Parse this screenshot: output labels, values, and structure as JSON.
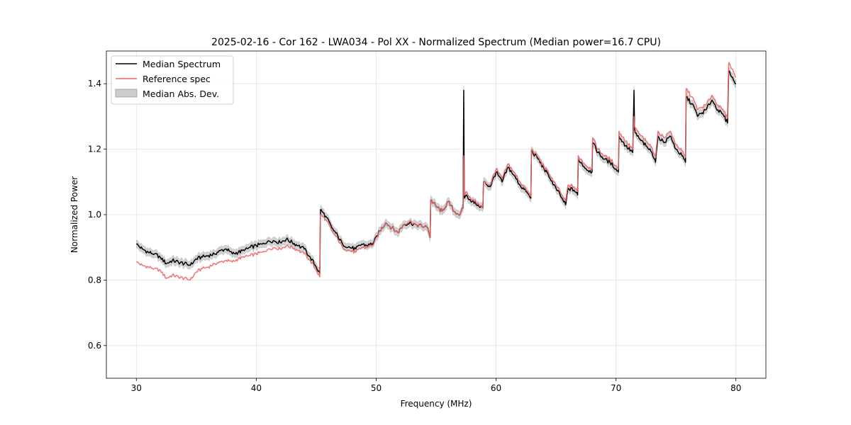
{
  "chart_data": {
    "type": "line",
    "title": "2025-02-16 - Cor 162 - LWA034 - Pol XX - Normalized Spectrum (Median power=16.7 CPU)",
    "xlabel": "Frequency (MHz)",
    "ylabel": "Normalized Power",
    "xlim": [
      27.5,
      82.5
    ],
    "ylim": [
      0.5,
      1.5
    ],
    "xticks": [
      30,
      40,
      50,
      60,
      70,
      80
    ],
    "yticks": [
      0.6,
      0.8,
      1.0,
      1.2,
      1.4
    ],
    "xtick_labels": [
      "30",
      "40",
      "50",
      "60",
      "70",
      "80"
    ],
    "ytick_labels": [
      "0.6",
      "0.8",
      "1.0",
      "1.2",
      "1.4"
    ],
    "grid": true,
    "legend_position": "top-left",
    "mad_width": 0.012,
    "series": [
      {
        "name": "Median Spectrum",
        "color": "#000000",
        "x": [
          30.0,
          30.5,
          31.0,
          31.5,
          32.0,
          32.5,
          33.0,
          33.5,
          34.0,
          34.5,
          35.0,
          35.5,
          36.0,
          36.5,
          37.0,
          37.5,
          38.0,
          38.5,
          39.0,
          39.5,
          40.0,
          40.5,
          41.0,
          41.5,
          42.0,
          42.5,
          43.0,
          43.5,
          44.0,
          44.5,
          45.0,
          45.3,
          45.35,
          45.8,
          46.3,
          46.8,
          47.2,
          47.8,
          48.3,
          48.8,
          49.3,
          49.8,
          50.3,
          50.8,
          51.3,
          51.8,
          52.3,
          52.8,
          53.3,
          53.8,
          54.3,
          54.5,
          54.55,
          55.0,
          55.5,
          56.0,
          56.5,
          57.0,
          57.25,
          57.3,
          57.35,
          57.5,
          58.0,
          58.5,
          58.9,
          58.95,
          59.5,
          60.0,
          60.5,
          61.0,
          61.5,
          62.0,
          62.5,
          62.9,
          62.95,
          63.5,
          64.0,
          64.5,
          65.0,
          65.5,
          65.8,
          66.0,
          66.5,
          66.8,
          66.85,
          67.5,
          68.0,
          68.05,
          68.5,
          69.0,
          69.5,
          70.0,
          70.2,
          70.25,
          70.8,
          71.4,
          71.5,
          71.55,
          71.6,
          72.0,
          72.5,
          73.0,
          73.3,
          73.5,
          74.0,
          74.5,
          75.0,
          75.5,
          75.8,
          75.85,
          76.5,
          76.8,
          77.5,
          78.0,
          78.5,
          79.0,
          79.3,
          79.4,
          79.8,
          80.0
        ],
        "y": [
          0.91,
          0.895,
          0.885,
          0.88,
          0.87,
          0.85,
          0.86,
          0.855,
          0.85,
          0.845,
          0.865,
          0.87,
          0.875,
          0.88,
          0.89,
          0.895,
          0.88,
          0.885,
          0.89,
          0.9,
          0.905,
          0.91,
          0.92,
          0.92,
          0.915,
          0.925,
          0.915,
          0.905,
          0.895,
          0.87,
          0.84,
          0.82,
          1.015,
          0.995,
          0.96,
          0.935,
          0.91,
          0.9,
          0.895,
          0.91,
          0.905,
          0.915,
          0.95,
          0.975,
          0.96,
          0.945,
          0.97,
          0.975,
          0.97,
          0.965,
          0.96,
          0.93,
          1.045,
          1.025,
          1.01,
          1.04,
          1.01,
          1.0,
          1.02,
          1.38,
          1.05,
          1.06,
          1.04,
          1.03,
          1.02,
          1.1,
          1.085,
          1.13,
          1.1,
          1.145,
          1.12,
          1.09,
          1.07,
          1.05,
          1.195,
          1.17,
          1.14,
          1.11,
          1.08,
          1.05,
          1.03,
          1.08,
          1.075,
          1.06,
          1.17,
          1.14,
          1.13,
          1.22,
          1.19,
          1.17,
          1.16,
          1.14,
          1.13,
          1.24,
          1.21,
          1.19,
          1.38,
          1.26,
          1.25,
          1.23,
          1.21,
          1.19,
          1.16,
          1.24,
          1.22,
          1.24,
          1.2,
          1.18,
          1.16,
          1.36,
          1.33,
          1.3,
          1.32,
          1.35,
          1.32,
          1.3,
          1.28,
          1.44,
          1.41,
          1.4
        ]
      },
      {
        "name": "Reference spec",
        "color": "#f06464",
        "x": [
          30.0,
          30.5,
          31.0,
          31.5,
          32.0,
          32.5,
          33.0,
          33.5,
          34.0,
          34.5,
          35.0,
          35.5,
          36.0,
          36.5,
          37.0,
          37.5,
          38.0,
          38.5,
          39.0,
          39.5,
          40.0,
          40.5,
          41.0,
          41.5,
          42.0,
          42.5,
          43.0,
          43.5,
          44.0,
          44.5,
          45.0,
          45.3,
          45.35,
          45.8,
          46.3,
          46.8,
          47.2,
          47.8,
          48.3,
          48.8,
          49.3,
          49.8,
          50.3,
          50.8,
          51.3,
          51.8,
          52.3,
          52.8,
          53.3,
          53.8,
          54.3,
          54.5,
          54.55,
          55.0,
          55.5,
          56.0,
          56.5,
          57.0,
          57.25,
          57.3,
          57.35,
          57.5,
          58.0,
          58.5,
          58.9,
          58.95,
          59.5,
          60.0,
          60.5,
          61.0,
          61.5,
          62.0,
          62.5,
          62.9,
          62.95,
          63.5,
          64.0,
          64.5,
          65.0,
          65.5,
          65.8,
          66.0,
          66.5,
          66.8,
          66.85,
          67.5,
          68.0,
          68.05,
          68.5,
          69.0,
          69.5,
          70.0,
          70.2,
          70.25,
          70.8,
          71.4,
          71.5,
          71.55,
          71.6,
          72.0,
          72.5,
          73.0,
          73.3,
          73.5,
          74.0,
          74.5,
          75.0,
          75.5,
          75.8,
          75.85,
          76.5,
          76.8,
          77.5,
          78.0,
          78.5,
          79.0,
          79.3,
          79.4,
          79.8,
          80.0
        ],
        "y": [
          0.855,
          0.845,
          0.84,
          0.835,
          0.83,
          0.805,
          0.815,
          0.81,
          0.805,
          0.8,
          0.825,
          0.835,
          0.84,
          0.85,
          0.855,
          0.86,
          0.855,
          0.865,
          0.87,
          0.875,
          0.88,
          0.885,
          0.895,
          0.9,
          0.895,
          0.905,
          0.9,
          0.89,
          0.88,
          0.86,
          0.83,
          0.81,
          1.0,
          0.985,
          0.95,
          0.925,
          0.9,
          0.89,
          0.885,
          0.9,
          0.9,
          0.91,
          0.95,
          0.975,
          0.96,
          0.945,
          0.97,
          0.98,
          0.97,
          0.965,
          0.96,
          0.93,
          1.045,
          1.025,
          1.01,
          1.04,
          1.01,
          1.0,
          1.02,
          1.18,
          1.06,
          1.07,
          1.045,
          1.035,
          1.02,
          1.1,
          1.09,
          1.14,
          1.11,
          1.155,
          1.13,
          1.1,
          1.075,
          1.055,
          1.2,
          1.175,
          1.145,
          1.12,
          1.09,
          1.06,
          1.04,
          1.09,
          1.085,
          1.07,
          1.18,
          1.15,
          1.14,
          1.235,
          1.2,
          1.18,
          1.17,
          1.15,
          1.14,
          1.255,
          1.225,
          1.2,
          1.3,
          1.27,
          1.265,
          1.245,
          1.225,
          1.205,
          1.175,
          1.255,
          1.235,
          1.255,
          1.215,
          1.195,
          1.175,
          1.385,
          1.35,
          1.32,
          1.335,
          1.365,
          1.335,
          1.315,
          1.295,
          1.465,
          1.435,
          1.42
        ]
      },
      {
        "name": "Median Abs. Dev.",
        "color": "#cccccc"
      }
    ]
  }
}
